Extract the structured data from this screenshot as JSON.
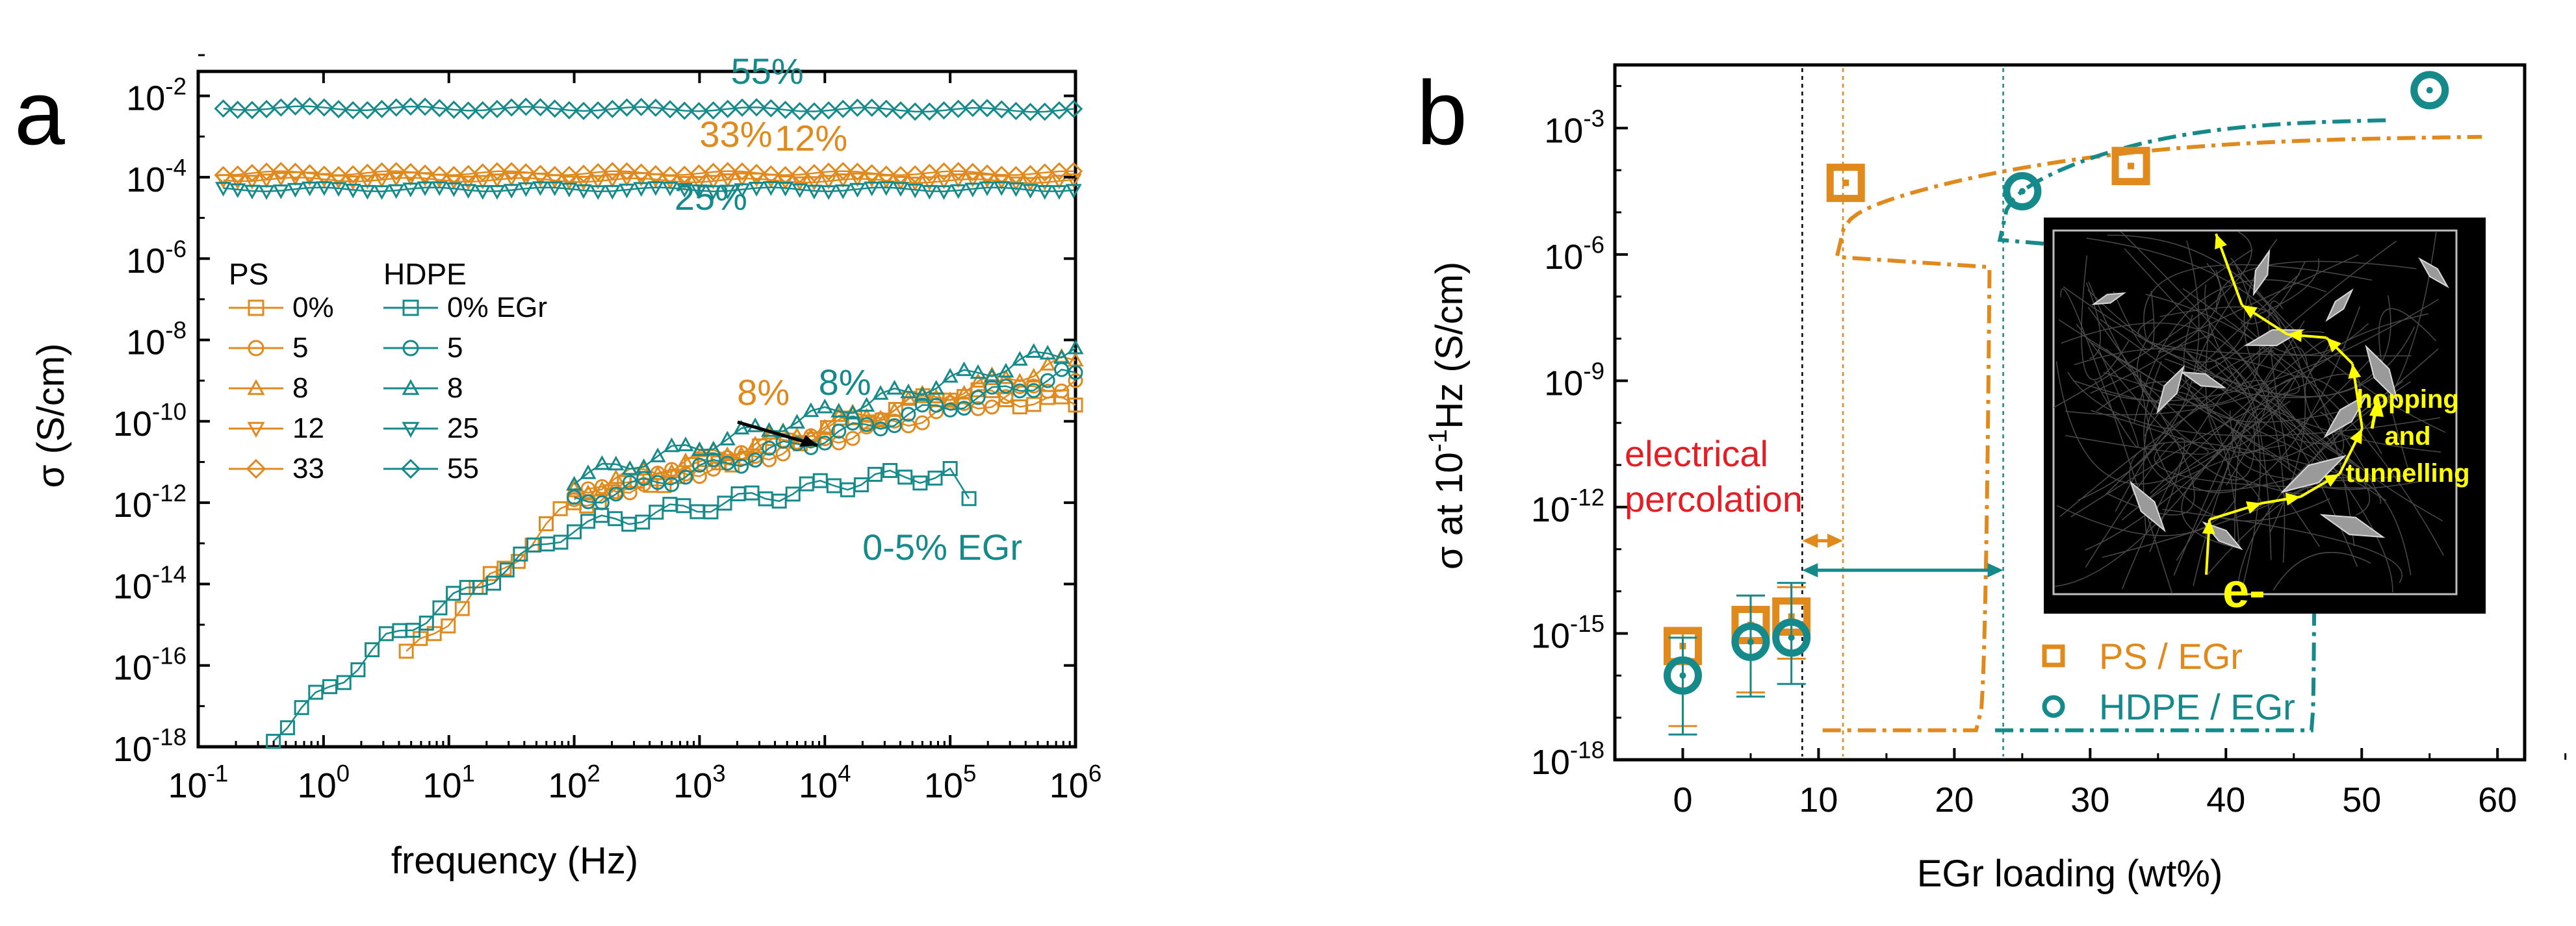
{
  "colors": {
    "ps": "#e08a1e",
    "hdpe": "#168a8a",
    "red": "#e31e24",
    "yellow": "#ffff00",
    "black": "#000000"
  },
  "chart_data": [
    {
      "panel": "a",
      "type": "scatter",
      "panel_label": "a",
      "xlabel": "frequency (Hz)",
      "ylabel": "σ (S/cm)",
      "xscale": "log",
      "yscale": "log",
      "xlim_exp": [
        -1,
        6
      ],
      "ylim_exp": [
        -18,
        -1.4
      ],
      "x_ticks": [
        {
          "base": "10",
          "exp": "-1"
        },
        {
          "base": "10",
          "exp": "0"
        },
        {
          "base": "10",
          "exp": "1"
        },
        {
          "base": "10",
          "exp": "2"
        },
        {
          "base": "10",
          "exp": "3"
        },
        {
          "base": "10",
          "exp": "4"
        },
        {
          "base": "10",
          "exp": "5"
        },
        {
          "base": "10",
          "exp": "6"
        }
      ],
      "y_ticks": [
        {
          "base": "10",
          "exp": "-18",
          "value": -18
        },
        {
          "base": "10",
          "exp": "-16",
          "value": -16
        },
        {
          "base": "10",
          "exp": "-14",
          "value": -14
        },
        {
          "base": "10",
          "exp": "-12",
          "value": -12
        },
        {
          "base": "10",
          "exp": "-10",
          "value": -10
        },
        {
          "base": "10",
          "exp": "-8",
          "value": -8
        },
        {
          "base": "10",
          "exp": "-6",
          "value": -6
        },
        {
          "base": "10",
          "exp": "-4",
          "value": -4
        },
        {
          "base": "10",
          "exp": "-2",
          "value": -2
        }
      ],
      "legend": {
        "ps_title": "PS",
        "hdpe_title": "HDPE",
        "ps": [
          {
            "label": "0%",
            "marker": "square"
          },
          {
            "label": "5",
            "marker": "circle"
          },
          {
            "label": "8",
            "marker": "triangle-up"
          },
          {
            "label": "12",
            "marker": "triangle-down"
          },
          {
            "label": "33",
            "marker": "diamond"
          }
        ],
        "hdpe": [
          {
            "label": "0% EGr",
            "marker": "square"
          },
          {
            "label": "5",
            "marker": "circle"
          },
          {
            "label": "8",
            "marker": "triangle-up"
          },
          {
            "label": "25",
            "marker": "triangle-down"
          },
          {
            "label": "55",
            "marker": "diamond"
          }
        ]
      },
      "annotations": [
        {
          "text": "55%",
          "color": "hdpe",
          "logx": 3.25,
          "logy": -1.7
        },
        {
          "text": "33%",
          "color": "ps",
          "logx": 3.0,
          "logy": -3.25
        },
        {
          "text": "12%",
          "color": "ps",
          "logx": 3.6,
          "logy": -3.35
        },
        {
          "text": "25%",
          "color": "hdpe",
          "logx": 2.8,
          "logy": -4.8
        },
        {
          "text": "8%",
          "color": "ps",
          "logx": 3.3,
          "logy": -9.6
        },
        {
          "text": "8%",
          "color": "hdpe",
          "logx": 3.95,
          "logy": -9.35
        },
        {
          "text": "0-5% EGr",
          "color": "hdpe",
          "logx": 4.3,
          "logy": -13.4
        }
      ],
      "series": [
        {
          "name": "PS 0%",
          "color": "ps",
          "marker": "square",
          "kind": "low",
          "x_log": [
            0.66,
            2.0,
            2.5,
            5.0,
            6.0
          ],
          "y_log": [
            -15.8,
            -12.0,
            -11.6,
            -9.3,
            -9.6
          ]
        },
        {
          "name": "PS 5",
          "color": "ps",
          "marker": "circle",
          "kind": "low",
          "x_log": [
            2.0,
            6.0
          ],
          "y_log": [
            -11.9,
            -9.0
          ]
        },
        {
          "name": "PS 8",
          "color": "ps",
          "marker": "triangle-up",
          "kind": "low",
          "x_log": [
            2.0,
            6.0
          ],
          "y_log": [
            -11.7,
            -8.5
          ]
        },
        {
          "name": "PS 12",
          "color": "ps",
          "marker": "triangle-down",
          "kind": "flat",
          "x_log": [
            -0.8,
            6.0
          ],
          "y_log": [
            -4.05,
            -4.1
          ]
        },
        {
          "name": "PS 33",
          "color": "ps",
          "marker": "diamond",
          "kind": "flat",
          "x_log": [
            -0.8,
            6.0
          ],
          "y_log": [
            -3.9,
            -3.9
          ]
        },
        {
          "name": "HDPE 0% EGr",
          "color": "hdpe",
          "marker": "square",
          "kind": "low",
          "x_log": [
            -0.4,
            0.5,
            2.0,
            4.4,
            5.0,
            5.15
          ],
          "y_log": [
            -17.7,
            -15.4,
            -12.6,
            -11.4,
            -11.3,
            -11.9
          ]
        },
        {
          "name": "HDPE 5",
          "color": "hdpe",
          "marker": "circle",
          "kind": "low",
          "x_log": [
            2.0,
            6.0
          ],
          "y_log": [
            -12.0,
            -8.8
          ]
        },
        {
          "name": "HDPE 8",
          "color": "hdpe",
          "marker": "triangle-up",
          "kind": "low",
          "x_log": [
            2.0,
            6.0
          ],
          "y_log": [
            -11.4,
            -8.2
          ]
        },
        {
          "name": "HDPE 25",
          "color": "hdpe",
          "marker": "triangle-down",
          "kind": "flat",
          "x_log": [
            -0.8,
            6.0
          ],
          "y_log": [
            -4.3,
            -4.3
          ]
        },
        {
          "name": "HDPE 55",
          "color": "hdpe",
          "marker": "diamond",
          "kind": "flat",
          "x_log": [
            -0.8,
            6.0
          ],
          "y_log": [
            -2.3,
            -2.35
          ]
        }
      ]
    },
    {
      "panel": "b",
      "type": "scatter",
      "panel_label": "b",
      "xlabel": "EGr loading (wt%)",
      "ylabel_prefix": "σ at 10",
      "ylabel_sup": "-1",
      "ylabel_suffix": "Hz (S/cm)",
      "xlim": [
        -5,
        62
      ],
      "ylim_exp": [
        -18,
        -1.5
      ],
      "x_ticks": [
        "0",
        "10",
        "20",
        "30",
        "40",
        "50",
        "60"
      ],
      "y_ticks": [
        {
          "base": "10",
          "exp": "-18",
          "value": -18
        },
        {
          "base": "10",
          "exp": "-15",
          "value": -15
        },
        {
          "base": "10",
          "exp": "-12",
          "value": -12
        },
        {
          "base": "10",
          "exp": "-9",
          "value": -9
        },
        {
          "base": "10",
          "exp": "-6",
          "value": -6
        },
        {
          "base": "10",
          "exp": "-3",
          "value": -3
        }
      ],
      "legend": [
        {
          "label": "PS / EGr",
          "color": "ps",
          "marker": "square-dot"
        },
        {
          "label": "HDPE / EGr",
          "color": "hdpe",
          "marker": "circle-dot"
        }
      ],
      "series": [
        {
          "name": "PS / EGr",
          "color": "ps",
          "x": [
            0,
            5,
            8,
            12,
            33
          ],
          "y_log": [
            -15.3,
            -14.8,
            -14.6,
            -4.3,
            -3.9
          ],
          "err_low": [
            -17.2,
            -16.4,
            -15.6,
            null,
            null
          ],
          "err_high": [
            -15.0,
            -14.1,
            -13.9,
            null,
            null
          ]
        },
        {
          "name": "HDPE / EGr",
          "color": "hdpe",
          "x": [
            0,
            5,
            8,
            25,
            55
          ],
          "y_log": [
            -16.0,
            -15.2,
            -15.1,
            -4.5,
            -2.1
          ],
          "err_low": [
            -17.4,
            -16.5,
            -16.2,
            null,
            null
          ],
          "err_high": [
            -15.1,
            -14.1,
            -13.8,
            null,
            null
          ]
        }
      ],
      "fits": [
        {
          "name": "PS fit",
          "color": "ps",
          "threshold": 11.5,
          "start_x": 10.3,
          "start_y": -17.3,
          "end_x": 59,
          "end_y": -3.2
        },
        {
          "name": "HDPE fit",
          "color": "hdpe",
          "threshold": 23.5,
          "start_x": 23.0,
          "start_y": -17.3,
          "end_x": 52,
          "end_y": -2.8
        }
      ],
      "threshold_lines": [
        {
          "x": 8.8,
          "color": "black"
        },
        {
          "x": 11.8,
          "color": "ps"
        },
        {
          "x": 23.6,
          "color": "hdpe"
        }
      ],
      "range_arrows": [
        {
          "x1": 8.8,
          "x2": 11.8,
          "y_log": -12.8,
          "color": "ps"
        },
        {
          "x1": 8.8,
          "x2": 23.6,
          "y_log": -13.5,
          "color": "hdpe"
        }
      ],
      "percolation_label": [
        "electrical",
        "percolation"
      ],
      "inset": {
        "label_lines": [
          "hopping",
          "and",
          "tunnelling"
        ],
        "electron_label": "e-"
      }
    }
  ]
}
